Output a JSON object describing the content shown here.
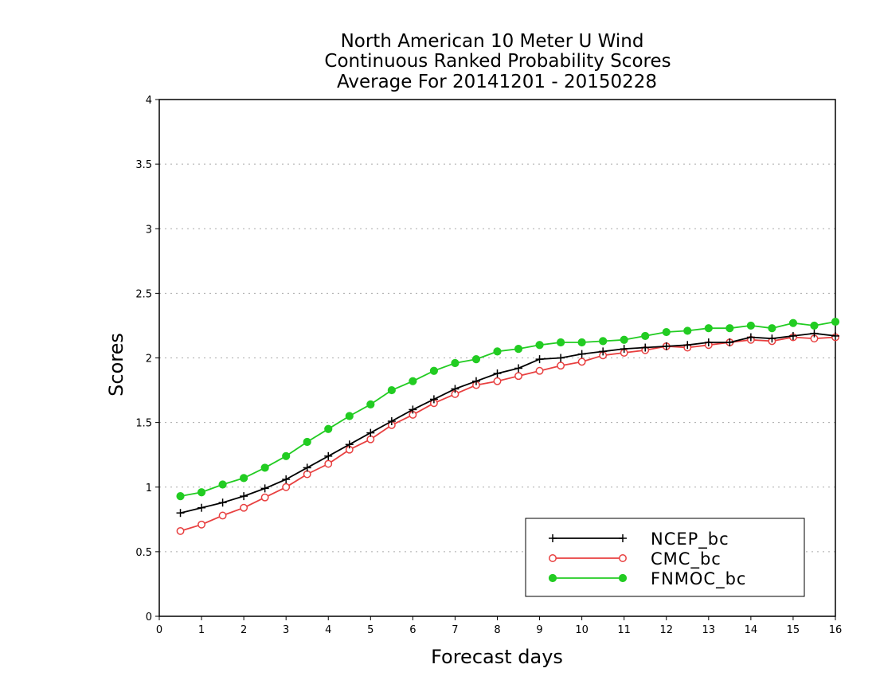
{
  "chart_data": {
    "type": "line",
    "title_lines": [
      "North American 10 Meter U Wind",
      "Continuous Ranked Probability Scores",
      "Average For 20141201 - 20150228"
    ],
    "xlabel": "Forecast days",
    "ylabel": "Scores",
    "xlim": [
      0,
      16
    ],
    "ylim": [
      0,
      4
    ],
    "x_ticks": [
      "0",
      "1",
      "2",
      "3",
      "4",
      "5",
      "6",
      "7",
      "8",
      "9",
      "10",
      "11",
      "12",
      "13",
      "14",
      "15",
      "16"
    ],
    "y_ticks": [
      "0",
      "0.5",
      "1",
      "1.5",
      "2",
      "2.5",
      "3",
      "3.5",
      "4"
    ],
    "grid": "horizontal dotted",
    "legend_position": "bottom-right",
    "x": [
      0.5,
      1,
      1.5,
      2,
      2.5,
      3,
      3.5,
      4,
      4.5,
      5,
      5.5,
      6,
      6.5,
      7,
      7.5,
      8,
      8.5,
      9,
      9.5,
      10,
      10.5,
      11,
      11.5,
      12,
      12.5,
      13,
      13.5,
      14,
      14.5,
      15,
      15.5,
      16
    ],
    "series": [
      {
        "name": "NCEP_bc",
        "color": "#000000",
        "marker": "plus",
        "values": [
          0.8,
          0.84,
          0.88,
          0.93,
          0.99,
          1.06,
          1.15,
          1.24,
          1.33,
          1.42,
          1.51,
          1.6,
          1.68,
          1.76,
          1.82,
          1.88,
          1.92,
          1.99,
          2.0,
          2.03,
          2.05,
          2.07,
          2.08,
          2.09,
          2.1,
          2.12,
          2.12,
          2.16,
          2.15,
          2.17,
          2.19,
          2.17
        ]
      },
      {
        "name": "CMC_bc",
        "color": "#e84040",
        "marker": "open-circle",
        "values": [
          0.66,
          0.71,
          0.78,
          0.84,
          0.92,
          1.0,
          1.1,
          1.18,
          1.29,
          1.37,
          1.48,
          1.56,
          1.65,
          1.72,
          1.79,
          1.82,
          1.86,
          1.9,
          1.94,
          1.97,
          2.02,
          2.04,
          2.06,
          2.09,
          2.08,
          2.1,
          2.12,
          2.14,
          2.13,
          2.16,
          2.15,
          2.16
        ]
      },
      {
        "name": "FNMOC_bc",
        "color": "#22cc22",
        "marker": "filled-circle",
        "values": [
          0.93,
          0.96,
          1.02,
          1.07,
          1.15,
          1.24,
          1.35,
          1.45,
          1.55,
          1.64,
          1.75,
          1.82,
          1.9,
          1.96,
          1.99,
          2.05,
          2.07,
          2.1,
          2.12,
          2.12,
          2.13,
          2.14,
          2.17,
          2.2,
          2.21,
          2.23,
          2.23,
          2.25,
          2.23,
          2.27,
          2.25,
          2.28
        ]
      }
    ]
  }
}
